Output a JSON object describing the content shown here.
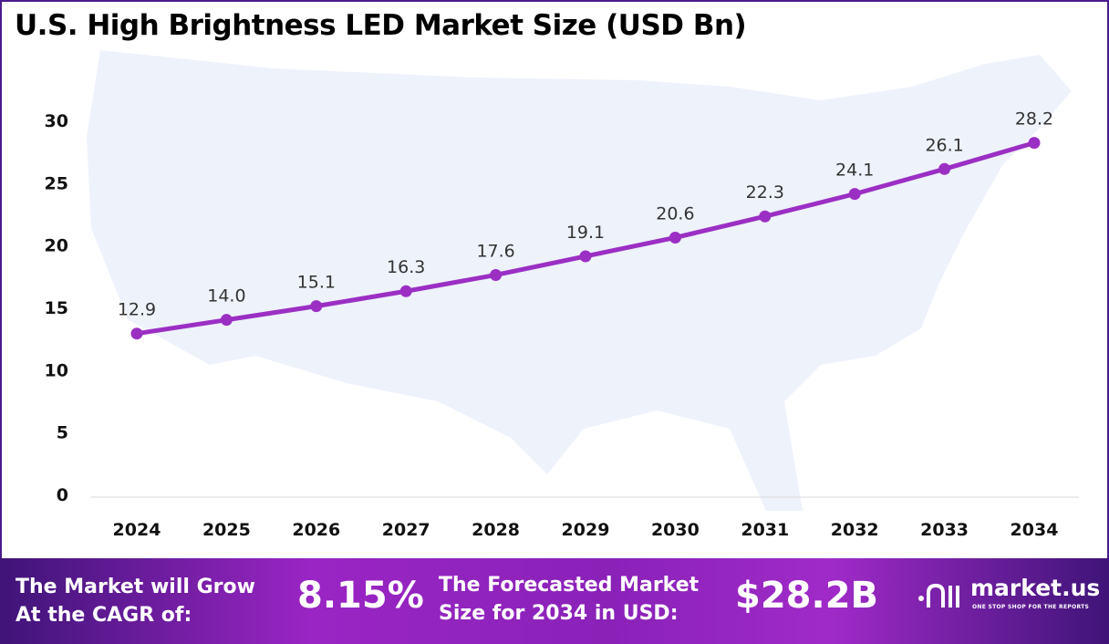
{
  "title": "U.S. High Brightness LED Market Size (USD Bn)",
  "chart_data": {
    "type": "line",
    "title": "U.S. High Brightness LED Market Size (USD Bn)",
    "categories": [
      "2024",
      "2025",
      "2026",
      "2027",
      "2028",
      "2029",
      "2030",
      "2031",
      "2032",
      "2033",
      "2034"
    ],
    "values": [
      12.9,
      14.0,
      15.1,
      16.3,
      17.6,
      19.1,
      20.6,
      22.3,
      24.1,
      26.1,
      28.2
    ],
    "data_labels": [
      "12.9",
      "14.0",
      "15.1",
      "16.3",
      "17.6",
      "19.1",
      "20.6",
      "22.3",
      "24.1",
      "26.1",
      "28.2"
    ],
    "yticks": [
      "0",
      "5",
      "10",
      "15",
      "20",
      "25",
      "30"
    ],
    "ylim": [
      0,
      30
    ],
    "grid": false,
    "line_color": "#9b2fc4"
  },
  "footer": {
    "cagr_label_line1": "The Market will Grow",
    "cagr_label_line2": "At the CAGR of:",
    "cagr_value": "8.15%",
    "forecast_label_line1": "The Forecasted Market",
    "forecast_label_line2": "Size for 2034 in USD:",
    "forecast_value": "$28.2B",
    "logo_text": "market.us",
    "logo_tagline": "ONE STOP SHOP FOR THE REPORTS"
  }
}
